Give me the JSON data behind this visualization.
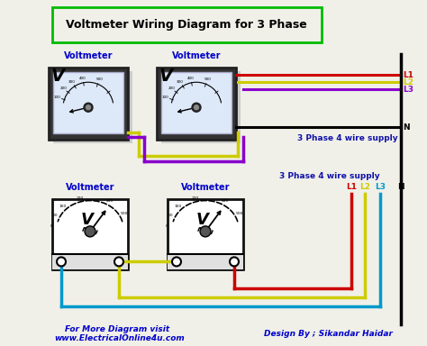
{
  "title": "Voltmeter Wiring Diagram for 3 Phase",
  "title_color": "#000000",
  "title_box_color": "#00bb00",
  "bg_color": "#f0f0e8",
  "voltmeter_label_color": "#0000cc",
  "wire_colors": {
    "L1": "#cc0000",
    "L2": "#cccc00",
    "L3": "#8800cc",
    "N": "#000000",
    "blue": "#0099cc"
  },
  "label_L1": "L1",
  "label_L2": "L2",
  "label_L3": "L3",
  "label_N": "N",
  "supply_text1": "3 Phase 4 wire supply",
  "supply_text2": "3 Phase 4 wire supply",
  "footer_left1": "For More Diagram visit",
  "footer_left2": "www.ElectricalOnline4u.com",
  "footer_right": "Design By ; Sikandar Haidar",
  "footer_color": "#0000cc"
}
